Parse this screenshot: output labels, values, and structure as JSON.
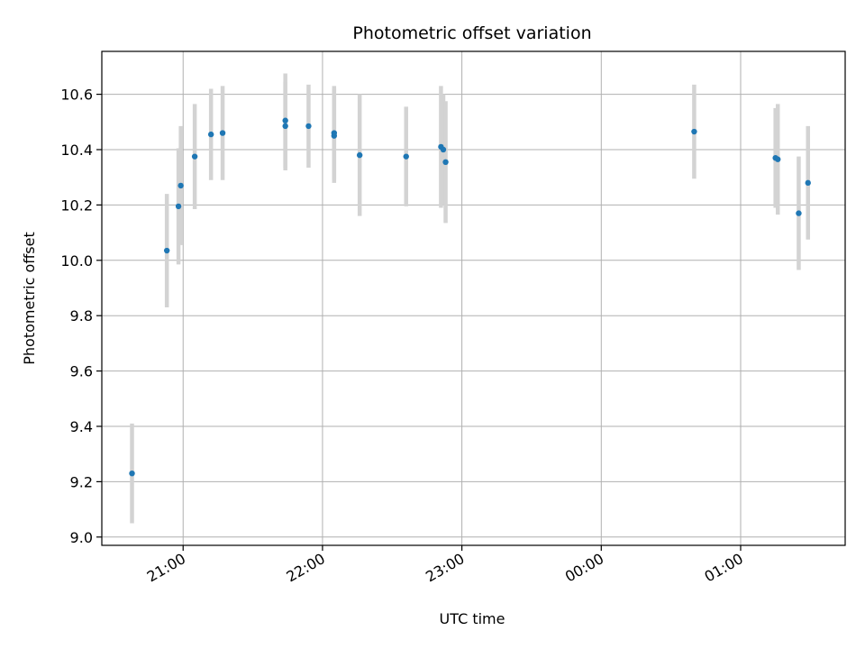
{
  "chart_data": {
    "type": "scatter",
    "title": "Photometric offset variation",
    "xlabel": "UTC time",
    "ylabel": "Photometric offset",
    "x_unit": "UTC time of night (hours, night starting 20:00)",
    "xlim": [
      "20:25",
      "01:45"
    ],
    "ylim": [
      8.97,
      10.755
    ],
    "yticks": [
      9.0,
      9.2,
      9.4,
      9.6,
      9.8,
      10.0,
      10.2,
      10.4,
      10.6
    ],
    "ytick_labels": [
      "9.0",
      "9.2",
      "9.4",
      "9.6",
      "9.8",
      "10.0",
      "10.2",
      "10.4",
      "10.6"
    ],
    "xticks": [
      "21:00",
      "22:00",
      "23:00",
      "00:00",
      "01:00"
    ],
    "xtick_labels": [
      "21:00",
      "22:00",
      "23:00",
      "00:00",
      "01:00"
    ],
    "grid": true,
    "marker_color": "#1f77b4",
    "errorbar_color": "#d3d3d3",
    "series": [
      {
        "points": [
          {
            "t": "20:38",
            "y": 9.23,
            "err": 0.18
          },
          {
            "t": "20:53",
            "y": 10.035,
            "err": 0.205
          },
          {
            "t": "20:58",
            "y": 10.195,
            "err": 0.21
          },
          {
            "t": "20:59",
            "y": 10.27,
            "err": 0.215
          },
          {
            "t": "21:05",
            "y": 10.375,
            "err": 0.19
          },
          {
            "t": "21:12",
            "y": 10.455,
            "err": 0.165
          },
          {
            "t": "21:17",
            "y": 10.46,
            "err": 0.17
          },
          {
            "t": "21:44",
            "y": 10.505,
            "err": 0.17
          },
          {
            "t": "21:44",
            "y": 10.485,
            "err": 0.16
          },
          {
            "t": "21:54",
            "y": 10.485,
            "err": 0.15
          },
          {
            "t": "22:05",
            "y": 10.46,
            "err": 0.17
          },
          {
            "t": "22:05",
            "y": 10.45,
            "err": 0.17
          },
          {
            "t": "22:16",
            "y": 10.38,
            "err": 0.22
          },
          {
            "t": "22:36",
            "y": 10.375,
            "err": 0.18
          },
          {
            "t": "22:51",
            "y": 10.41,
            "err": 0.22
          },
          {
            "t": "22:52",
            "y": 10.4,
            "err": 0.2
          },
          {
            "t": "22:53",
            "y": 10.355,
            "err": 0.22
          },
          {
            "t": "00:40",
            "y": 10.465,
            "err": 0.17
          },
          {
            "t": "01:15",
            "y": 10.37,
            "err": 0.18
          },
          {
            "t": "01:16",
            "y": 10.365,
            "err": 0.2
          },
          {
            "t": "01:25",
            "y": 10.17,
            "err": 0.205
          },
          {
            "t": "01:29",
            "y": 10.28,
            "err": 0.205
          }
        ]
      }
    ]
  }
}
